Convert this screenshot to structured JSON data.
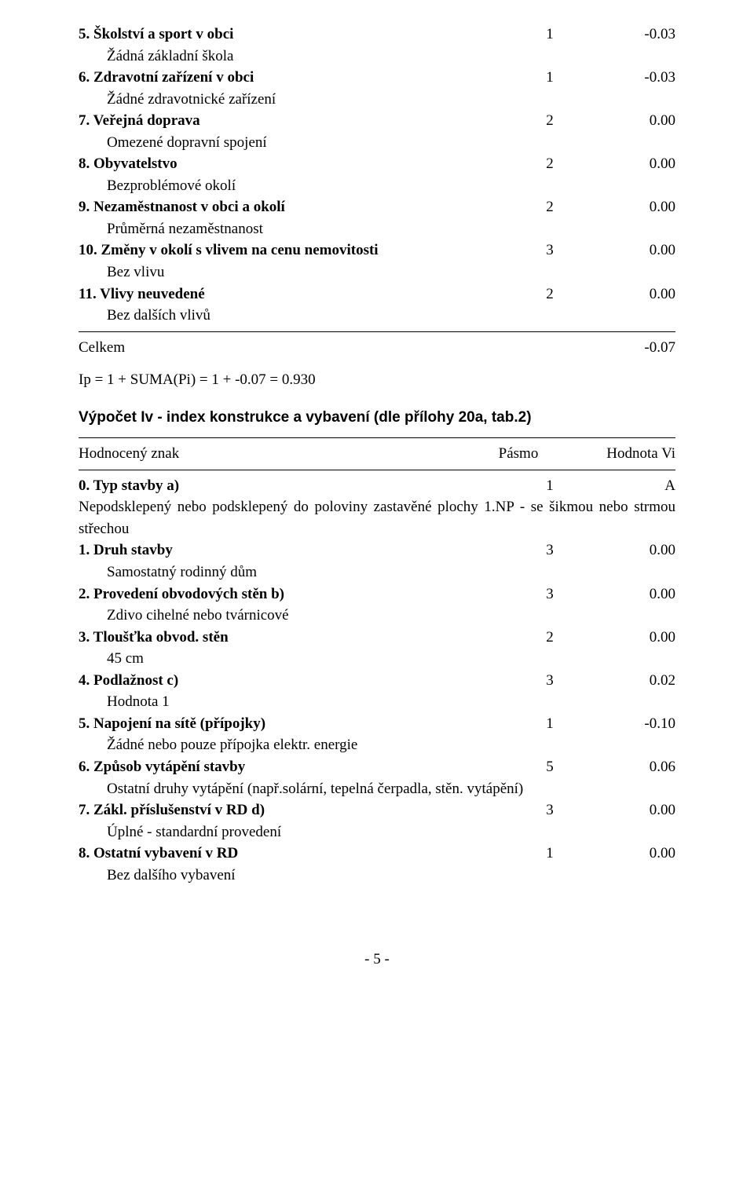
{
  "listA": {
    "items": [
      {
        "title": "5. Školství a sport v obci",
        "pasmo": "1",
        "val": "-0.03",
        "sub": "Žádná základní škola"
      },
      {
        "title": "6. Zdravotní zařízení v obci",
        "pasmo": "1",
        "val": "-0.03",
        "sub": "Žádné zdravotnické zařízení"
      },
      {
        "title": "7. Veřejná doprava",
        "pasmo": "2",
        "val": "0.00",
        "sub": "Omezené dopravní spojení"
      },
      {
        "title": "8. Obyvatelstvo",
        "pasmo": "2",
        "val": "0.00",
        "sub": "Bezproblémové okolí"
      },
      {
        "title": "9. Nezaměstnanost v obci a okolí",
        "pasmo": "2",
        "val": "0.00",
        "sub": "Průměrná nezaměstnanost"
      },
      {
        "title": "10. Změny v okolí s vlivem na cenu nemovitosti",
        "pasmo": "3",
        "val": "0.00",
        "sub": "Bez vlivu"
      },
      {
        "title": "11. Vlivy neuvedené",
        "pasmo": "2",
        "val": "0.00",
        "sub": "Bez dalších vlivů"
      }
    ],
    "total_label": "Celkem",
    "total_val": "-0.07"
  },
  "formula": "Ip = 1 + SUMA(Pi) = 1 + -0.07 = 0.930",
  "section_title": "Výpočet Iv - index konstrukce a vybavení (dle přílohy 20a, tab.2)",
  "header": {
    "label": "Hodnocený znak",
    "p": "Pásmo",
    "v": "Hodnota Vi"
  },
  "row0": {
    "title": "0. Typ stavby a)",
    "pasmo": "1",
    "val": "A"
  },
  "row0_desc": "Nepodsklepený nebo podsklepený do poloviny zastavěné plochy 1.NP - se šikmou nebo strmou střechou",
  "listB": {
    "items": [
      {
        "title": "1. Druh stavby",
        "pasmo": "3",
        "val": "0.00",
        "sub": "Samostatný rodinný dům"
      },
      {
        "title": "2. Provedení obvodových stěn b)",
        "pasmo": "3",
        "val": "0.00",
        "sub": "Zdivo cihelné nebo tvárnicové"
      },
      {
        "title": "3. Tloušťka obvod. stěn",
        "pasmo": "2",
        "val": "0.00",
        "sub": "45 cm"
      },
      {
        "title": "4. Podlažnost c)",
        "pasmo": "3",
        "val": "0.02",
        "sub": "Hodnota 1"
      },
      {
        "title": "5. Napojení na sítě (přípojky)",
        "pasmo": "1",
        "val": "-0.10",
        "sub": "Žádné nebo pouze přípojka elektr. energie"
      },
      {
        "title": "6. Způsob vytápění stavby",
        "pasmo": "5",
        "val": "0.06",
        "sub": "Ostatní druhy vytápění (např.solární, tepelná čerpadla, stěn. vytápění)"
      },
      {
        "title": "7. Zákl. příslušenství v RD d)",
        "pasmo": "3",
        "val": "0.00",
        "sub": "Úplné - standardní provedení"
      },
      {
        "title": "8. Ostatní vybavení v RD",
        "pasmo": "1",
        "val": "0.00",
        "sub": "Bez dalšího vybavení"
      }
    ]
  },
  "page_number": "- 5 -"
}
